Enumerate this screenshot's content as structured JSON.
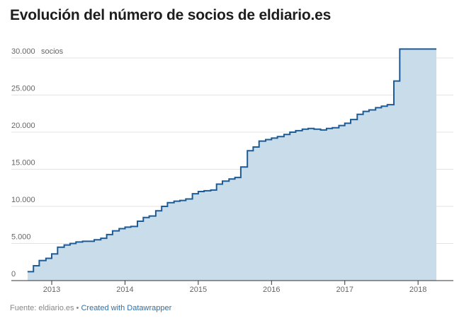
{
  "title": "Evolución del número de socios de eldiario.es",
  "footer": {
    "source": "Fuente: eldiario.es",
    "separator": " • ",
    "credit": "Created with Datawrapper"
  },
  "colors": {
    "line": "#1c5b95",
    "area": "#c9dcea",
    "grid": "#e3e3e3",
    "axis": "#333333"
  },
  "chart_data": {
    "type": "area",
    "title": "Evolución del número de socios de eldiario.es",
    "xlabel": "",
    "ylabel": "socios",
    "unit_label": "socios",
    "ylim": [
      0,
      30000
    ],
    "xlim": [
      2012.7,
      2018.45
    ],
    "step": true,
    "grid": true,
    "legend": "none",
    "yticks": [
      0,
      5000,
      10000,
      15000,
      20000,
      25000,
      30000
    ],
    "ytick_labels": [
      "0",
      "5.000",
      "10.000",
      "15.000",
      "20.000",
      "25.000",
      "30.000"
    ],
    "xticks": [
      2013,
      2014,
      2015,
      2016,
      2017,
      2018
    ],
    "xtick_labels": [
      "2013",
      "2014",
      "2015",
      "2016",
      "2017",
      "2018"
    ],
    "series": [
      {
        "x": [
          2012.67,
          2012.75,
          2012.83,
          2012.92,
          2013.0,
          2013.08,
          2013.17,
          2013.25,
          2013.33,
          2013.42,
          2013.5,
          2013.58,
          2013.67,
          2013.75,
          2013.83,
          2013.92,
          2014.0,
          2014.08,
          2014.17,
          2014.25,
          2014.33,
          2014.42,
          2014.5,
          2014.58,
          2014.67,
          2014.75,
          2014.83,
          2014.92,
          2015.0,
          2015.08,
          2015.17,
          2015.25,
          2015.33,
          2015.42,
          2015.5,
          2015.58,
          2015.67,
          2015.75,
          2015.83,
          2015.92,
          2016.0,
          2016.08,
          2016.17,
          2016.25,
          2016.33,
          2016.42,
          2016.5,
          2016.58,
          2016.67,
          2016.75,
          2016.83,
          2016.92,
          2017.0,
          2017.08,
          2017.17,
          2017.25,
          2017.33,
          2017.42,
          2017.5,
          2017.58,
          2017.67,
          2017.75,
          2017.83,
          2017.92,
          2018.0,
          2018.08,
          2018.17,
          2018.25
        ],
        "values": [
          1200,
          2000,
          2700,
          3000,
          3600,
          4500,
          4800,
          5000,
          5200,
          5300,
          5300,
          5500,
          5700,
          6200,
          6700,
          7000,
          7200,
          7300,
          8000,
          8500,
          8700,
          9400,
          10000,
          10500,
          10700,
          10800,
          11000,
          11700,
          12000,
          12100,
          12200,
          13000,
          13400,
          13700,
          13900,
          15300,
          17500,
          18000,
          18800,
          19000,
          19200,
          19400,
          19700,
          20000,
          20200,
          20400,
          20500,
          20400,
          20300,
          20500,
          20600,
          20900,
          21200,
          21700,
          22400,
          22800,
          23000,
          23300,
          23500,
          23700,
          26900,
          31200,
          31200,
          31200,
          31200,
          31200,
          31200,
          31200
        ]
      }
    ]
  }
}
